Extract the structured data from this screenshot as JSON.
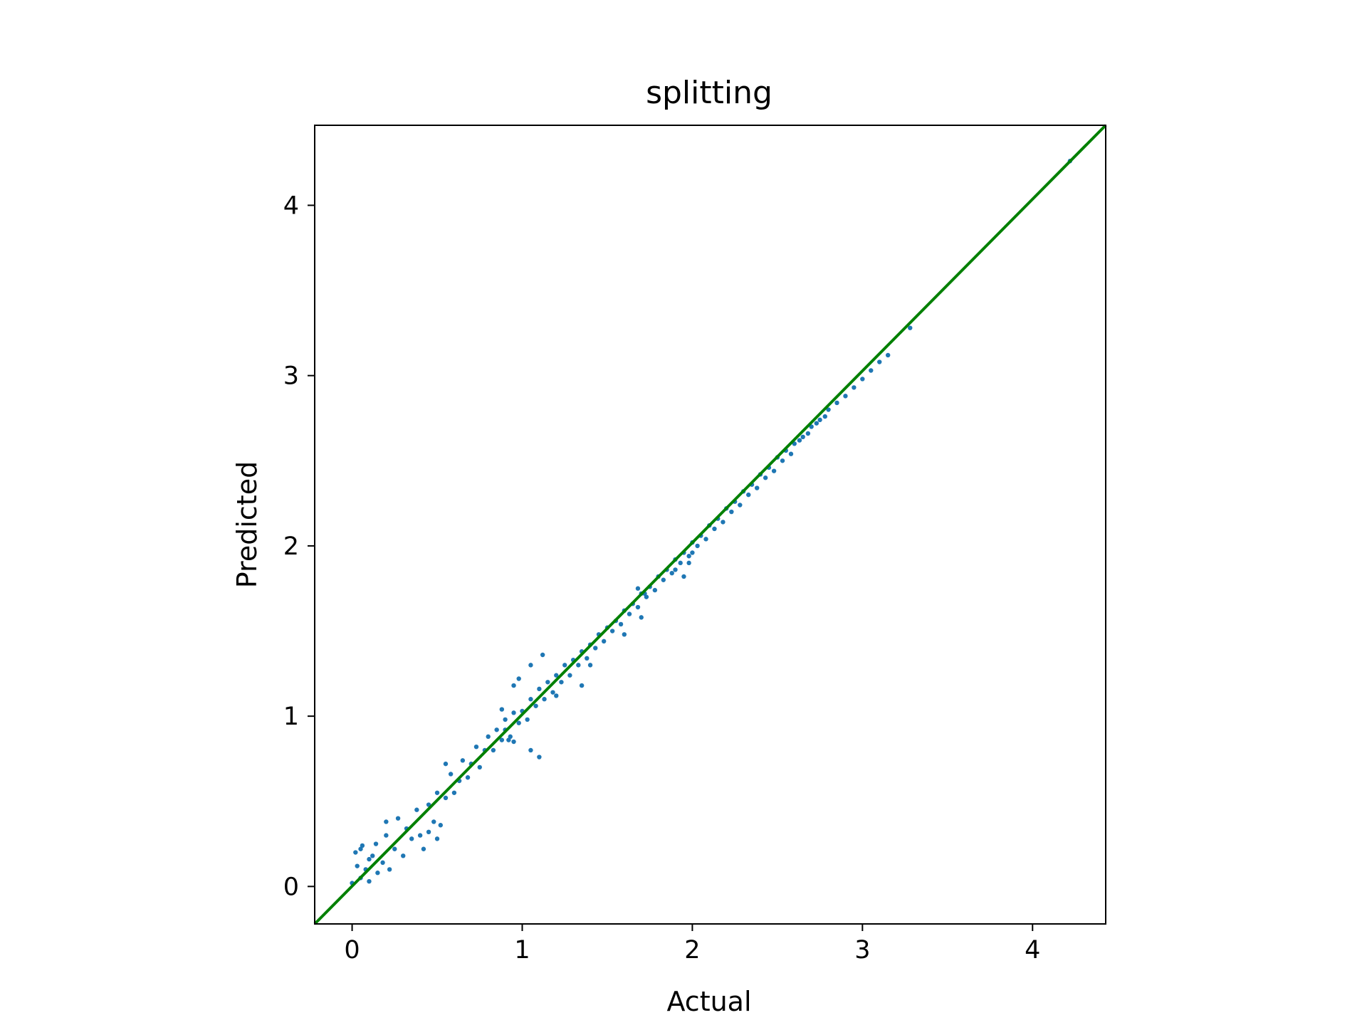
{
  "chart_data": {
    "type": "scatter",
    "title": "splitting",
    "xlabel": "Actual",
    "ylabel": "Predicted",
    "xlim": [
      -0.22,
      4.43
    ],
    "ylim": [
      -0.22,
      4.47
    ],
    "xticks": [
      0,
      1,
      2,
      3,
      4
    ],
    "yticks": [
      0,
      1,
      2,
      3,
      4
    ],
    "grid": false,
    "legend": "none",
    "colors": {
      "points": "#1f77b4",
      "reference_line": "#008000",
      "frame": "#000000"
    },
    "series": [
      {
        "points": [
          [
            0.0,
            0.02
          ],
          [
            0.02,
            0.2
          ],
          [
            0.03,
            0.12
          ],
          [
            0.05,
            0.05
          ],
          [
            0.06,
            0.24
          ],
          [
            0.08,
            0.1
          ],
          [
            0.1,
            0.03
          ],
          [
            0.12,
            0.18
          ],
          [
            0.14,
            0.25
          ],
          [
            0.15,
            0.08
          ],
          [
            0.18,
            0.14
          ],
          [
            0.2,
            0.3
          ],
          [
            0.22,
            0.1
          ],
          [
            0.25,
            0.22
          ],
          [
            0.27,
            0.4
          ],
          [
            0.3,
            0.18
          ],
          [
            0.32,
            0.34
          ],
          [
            0.35,
            0.28
          ],
          [
            0.38,
            0.45
          ],
          [
            0.4,
            0.3
          ],
          [
            0.42,
            0.22
          ],
          [
            0.45,
            0.48
          ],
          [
            0.48,
            0.38
          ],
          [
            0.5,
            0.55
          ],
          [
            0.52,
            0.36
          ],
          [
            0.55,
            0.52
          ],
          [
            0.58,
            0.66
          ],
          [
            0.6,
            0.55
          ],
          [
            0.63,
            0.62
          ],
          [
            0.65,
            0.74
          ],
          [
            0.68,
            0.64
          ],
          [
            0.7,
            0.72
          ],
          [
            0.73,
            0.82
          ],
          [
            0.75,
            0.7
          ],
          [
            0.78,
            0.8
          ],
          [
            0.8,
            0.88
          ],
          [
            0.83,
            0.8
          ],
          [
            0.85,
            0.92
          ],
          [
            0.88,
            0.86
          ],
          [
            0.9,
            0.98
          ],
          [
            0.93,
            0.88
          ],
          [
            0.95,
            1.02
          ],
          [
            0.98,
            0.96
          ],
          [
            1.0,
            1.03
          ],
          [
            1.03,
            0.98
          ],
          [
            1.05,
            1.1
          ],
          [
            1.08,
            1.06
          ],
          [
            1.1,
            1.16
          ],
          [
            1.13,
            1.1
          ],
          [
            1.15,
            1.2
          ],
          [
            1.18,
            1.14
          ],
          [
            1.2,
            1.24
          ],
          [
            1.23,
            1.2
          ],
          [
            1.25,
            1.3
          ],
          [
            1.28,
            1.24
          ],
          [
            1.3,
            1.33
          ],
          [
            1.33,
            1.3
          ],
          [
            1.35,
            1.38
          ],
          [
            1.38,
            1.34
          ],
          [
            1.4,
            1.42
          ],
          [
            1.43,
            1.4
          ],
          [
            1.45,
            1.48
          ],
          [
            1.48,
            1.44
          ],
          [
            1.5,
            1.52
          ],
          [
            1.53,
            1.5
          ],
          [
            1.55,
            1.56
          ],
          [
            1.58,
            1.54
          ],
          [
            1.6,
            1.62
          ],
          [
            1.63,
            1.6
          ],
          [
            1.65,
            1.66
          ],
          [
            1.68,
            1.64
          ],
          [
            1.7,
            1.72
          ],
          [
            1.73,
            1.7
          ],
          [
            1.75,
            1.76
          ],
          [
            1.78,
            1.74
          ],
          [
            1.8,
            1.82
          ],
          [
            1.83,
            1.8
          ],
          [
            1.85,
            1.86
          ],
          [
            1.88,
            1.84
          ],
          [
            1.9,
            1.92
          ],
          [
            1.93,
            1.9
          ],
          [
            1.95,
            1.96
          ],
          [
            1.98,
            1.94
          ],
          [
            2.0,
            2.02
          ],
          [
            2.03,
            2.0
          ],
          [
            2.05,
            2.06
          ],
          [
            2.08,
            2.04
          ],
          [
            2.1,
            2.12
          ],
          [
            2.13,
            2.1
          ],
          [
            2.15,
            2.16
          ],
          [
            2.18,
            2.14
          ],
          [
            2.2,
            2.22
          ],
          [
            2.23,
            2.2
          ],
          [
            2.25,
            2.26
          ],
          [
            2.28,
            2.24
          ],
          [
            2.3,
            2.32
          ],
          [
            2.33,
            2.3
          ],
          [
            2.35,
            2.36
          ],
          [
            2.38,
            2.34
          ],
          [
            2.4,
            2.42
          ],
          [
            2.43,
            2.4
          ],
          [
            2.45,
            2.46
          ],
          [
            2.48,
            2.44
          ],
          [
            2.5,
            2.52
          ],
          [
            2.53,
            2.5
          ],
          [
            2.55,
            2.56
          ],
          [
            2.58,
            2.54
          ],
          [
            2.6,
            2.6
          ],
          [
            2.63,
            2.62
          ],
          [
            2.65,
            2.64
          ],
          [
            2.68,
            2.66
          ],
          [
            2.7,
            2.7
          ],
          [
            2.73,
            2.72
          ],
          [
            2.75,
            2.74
          ],
          [
            2.78,
            2.76
          ],
          [
            2.8,
            2.8
          ],
          [
            2.85,
            2.84
          ],
          [
            2.9,
            2.88
          ],
          [
            2.95,
            2.93
          ],
          [
            3.0,
            2.98
          ],
          [
            3.05,
            3.03
          ],
          [
            3.1,
            3.08
          ],
          [
            3.15,
            3.12
          ],
          [
            3.28,
            3.28
          ],
          [
            4.22,
            4.26
          ],
          [
            0.05,
            0.22
          ],
          [
            0.1,
            0.16
          ],
          [
            0.2,
            0.38
          ],
          [
            0.45,
            0.32
          ],
          [
            0.5,
            0.28
          ],
          [
            0.55,
            0.72
          ],
          [
            0.88,
            1.04
          ],
          [
            0.9,
            0.92
          ],
          [
            0.92,
            0.86
          ],
          [
            0.95,
            0.85
          ],
          [
            1.05,
            0.8
          ],
          [
            1.1,
            0.76
          ],
          [
            0.95,
            1.18
          ],
          [
            0.98,
            1.22
          ],
          [
            1.05,
            1.3
          ],
          [
            1.12,
            1.36
          ],
          [
            1.2,
            1.12
          ],
          [
            1.35,
            1.18
          ],
          [
            1.4,
            1.3
          ],
          [
            1.6,
            1.48
          ],
          [
            1.7,
            1.58
          ],
          [
            1.68,
            1.75
          ],
          [
            1.72,
            1.72
          ],
          [
            1.9,
            1.86
          ],
          [
            1.95,
            1.82
          ],
          [
            1.98,
            1.9
          ],
          [
            2.0,
            1.96
          ]
        ]
      }
    ],
    "reference_line": [
      [
        -0.22,
        -0.22
      ],
      [
        4.43,
        4.47
      ]
    ]
  }
}
